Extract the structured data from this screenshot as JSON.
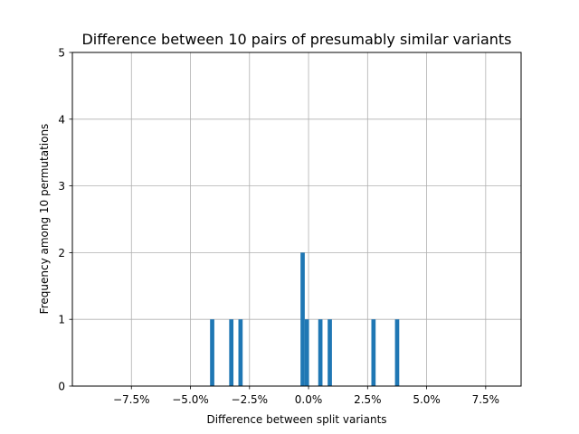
{
  "chart_data": {
    "type": "bar",
    "title": "Difference between 10 pairs of presumably similar variants",
    "xlabel": "Difference between split variants",
    "ylabel": "Frequency among 10 permutations",
    "xlim": [
      -0.1,
      0.09
    ],
    "ylim": [
      0,
      5
    ],
    "xticks": [
      {
        "value": -0.075,
        "label": "−7.5%"
      },
      {
        "value": -0.05,
        "label": "−5.0%"
      },
      {
        "value": -0.025,
        "label": "−2.5%"
      },
      {
        "value": 0.0,
        "label": "0.0%"
      },
      {
        "value": 0.025,
        "label": "2.5%"
      },
      {
        "value": 0.05,
        "label": "5.0%"
      },
      {
        "value": 0.075,
        "label": "7.5%"
      }
    ],
    "yticks": [
      {
        "value": 0,
        "label": "0"
      },
      {
        "value": 1,
        "label": "1"
      },
      {
        "value": 2,
        "label": "2"
      },
      {
        "value": 3,
        "label": "3"
      },
      {
        "value": 4,
        "label": "4"
      },
      {
        "value": 5,
        "label": "5"
      }
    ],
    "grid": true,
    "bar_width": 0.0018,
    "bar_color": "#1f77b4",
    "bars": [
      {
        "x": -0.0408,
        "count": 1
      },
      {
        "x": -0.0327,
        "count": 1
      },
      {
        "x": -0.0288,
        "count": 1
      },
      {
        "x": -0.0025,
        "count": 2
      },
      {
        "x": -0.0007,
        "count": 1
      },
      {
        "x": 0.005,
        "count": 1
      },
      {
        "x": 0.009,
        "count": 1
      },
      {
        "x": 0.0275,
        "count": 1
      },
      {
        "x": 0.0375,
        "count": 1
      }
    ]
  }
}
